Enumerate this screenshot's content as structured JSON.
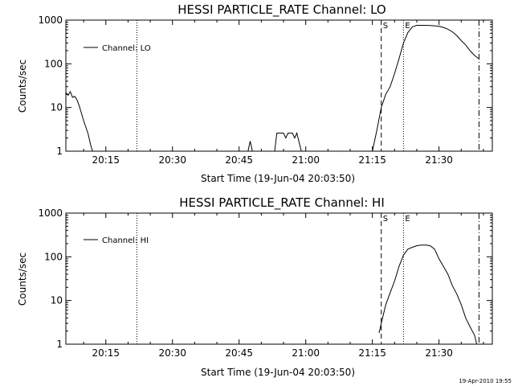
{
  "footer_timestamp": "19-Apr-2010 19:55",
  "chart_data": [
    {
      "type": "line",
      "title": "HESSI PARTICLE_RATE Channel: LO",
      "xlabel": "Start Time (19-Jun-04 20:03:50)",
      "ylabel": "Counts/sec",
      "y_scale": "log",
      "xlim": [
        "20:06",
        "21:42"
      ],
      "ylim": [
        1,
        1000
      ],
      "x_ticks": [
        "20:15",
        "20:30",
        "20:45",
        "21:00",
        "21:15",
        "21:30"
      ],
      "y_ticks": [
        "1",
        "10",
        "100",
        "1000"
      ],
      "legend_entry": "Channel: LO",
      "legend_position": "top-left",
      "grid": false,
      "line_color": "#000000",
      "vertical_markers": [
        {
          "time": "20:22",
          "style": "dotted",
          "label": ""
        },
        {
          "time": "21:17",
          "style": "dashed",
          "label": "S"
        },
        {
          "time": "21:22",
          "style": "dotted",
          "label": "E"
        },
        {
          "time": "21:39",
          "style": "dash-dot",
          "label": ""
        }
      ],
      "segments": [
        [
          [
            "20:06",
            22
          ],
          [
            "20:06:30",
            19
          ],
          [
            "20:07",
            23
          ],
          [
            "20:07:30",
            17
          ],
          [
            "20:08",
            18
          ],
          [
            "20:08:30",
            15
          ],
          [
            "20:09",
            11
          ],
          [
            "20:10",
            5
          ],
          [
            "20:11",
            2.5
          ],
          [
            "20:11:30",
            1.5
          ],
          [
            "20:12",
            1
          ]
        ],
        [
          [
            "20:47",
            1
          ],
          [
            "20:47:30",
            1.7
          ],
          [
            "20:48",
            1
          ]
        ],
        [
          [
            "20:53",
            1
          ],
          [
            "20:53:30",
            2.6
          ],
          [
            "20:55",
            2.6
          ],
          [
            "20:55:30",
            2.0
          ],
          [
            "20:56",
            2.6
          ],
          [
            "20:57",
            2.6
          ],
          [
            "20:57:30",
            2.0
          ],
          [
            "20:58",
            2.6
          ],
          [
            "20:59",
            1
          ]
        ],
        [
          [
            "21:15",
            1
          ],
          [
            "21:16",
            3
          ],
          [
            "21:17",
            10
          ],
          [
            "21:18",
            20
          ],
          [
            "21:19",
            30
          ],
          [
            "21:20",
            60
          ],
          [
            "21:21",
            130
          ],
          [
            "21:22",
            300
          ],
          [
            "21:23",
            520
          ],
          [
            "21:24",
            700
          ],
          [
            "21:25",
            760
          ],
          [
            "21:26",
            760
          ],
          [
            "21:27",
            760
          ],
          [
            "21:28",
            750
          ],
          [
            "21:29",
            740
          ],
          [
            "21:30",
            720
          ],
          [
            "21:31",
            680
          ],
          [
            "21:32",
            620
          ],
          [
            "21:33",
            540
          ],
          [
            "21:34",
            440
          ],
          [
            "21:35",
            340
          ],
          [
            "21:36",
            270
          ],
          [
            "21:37",
            200
          ],
          [
            "21:38",
            155
          ],
          [
            "21:39",
            130
          ]
        ]
      ]
    },
    {
      "type": "line",
      "title": "HESSI PARTICLE_RATE Channel: HI",
      "xlabel": "Start Time (19-Jun-04 20:03:50)",
      "ylabel": "Counts/sec",
      "y_scale": "log",
      "xlim": [
        "20:06",
        "21:42"
      ],
      "ylim": [
        1,
        1000
      ],
      "x_ticks": [
        "20:15",
        "20:30",
        "20:45",
        "21:00",
        "21:15",
        "21:30"
      ],
      "y_ticks": [
        "1",
        "10",
        "100",
        "1000"
      ],
      "legend_entry": "Channel: HI",
      "legend_position": "top-left",
      "grid": false,
      "line_color": "#000000",
      "vertical_markers": [
        {
          "time": "20:22",
          "style": "dotted",
          "label": ""
        },
        {
          "time": "21:17",
          "style": "dashed",
          "label": "S"
        },
        {
          "time": "21:22",
          "style": "dotted",
          "label": "E"
        },
        {
          "time": "21:39",
          "style": "dash-dot",
          "label": ""
        }
      ],
      "segments": [
        [
          [
            "21:16:30",
            1.8
          ],
          [
            "21:17",
            3
          ],
          [
            "21:18",
            8
          ],
          [
            "21:19",
            15
          ],
          [
            "21:20",
            28
          ],
          [
            "21:21",
            60
          ],
          [
            "21:22",
            110
          ],
          [
            "21:23",
            150
          ],
          [
            "21:24",
            165
          ],
          [
            "21:25",
            180
          ],
          [
            "21:26",
            185
          ],
          [
            "21:27",
            185
          ],
          [
            "21:28",
            180
          ],
          [
            "21:29",
            150
          ],
          [
            "21:30",
            90
          ],
          [
            "21:31",
            60
          ],
          [
            "21:32",
            40
          ],
          [
            "21:33",
            22
          ],
          [
            "21:34",
            14
          ],
          [
            "21:35",
            8
          ],
          [
            "21:36",
            4
          ],
          [
            "21:37",
            2.5
          ],
          [
            "21:38",
            1.6
          ],
          [
            "21:38:30",
            1
          ]
        ]
      ]
    }
  ]
}
